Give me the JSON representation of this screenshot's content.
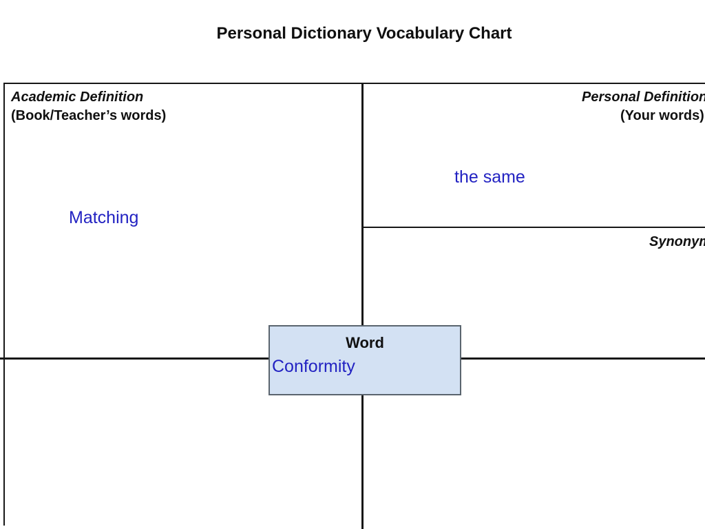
{
  "page": {
    "title": "Personal Dictionary Vocabulary Chart"
  },
  "quadrants": {
    "academic_definition": {
      "heading": "Academic Definition",
      "subheading": "(Book/Teacher’s words)",
      "entry": "Matching"
    },
    "personal_definition": {
      "heading": "Personal Definition",
      "subheading": "(Your words)",
      "entry": "the same"
    },
    "synonyms": {
      "heading": "Synonyms"
    }
  },
  "word_box": {
    "heading": "Word",
    "value": "Conformity"
  },
  "colors": {
    "ink": "#161616",
    "entry_blue": "#2222c2",
    "word_box_fill": "#d3e1f3",
    "word_box_border": "#5a646e"
  }
}
